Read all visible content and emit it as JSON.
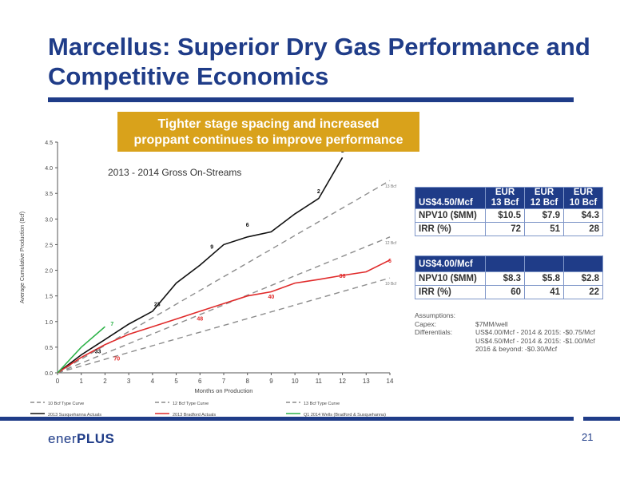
{
  "title": "Marcellus:  Superior Dry Gas Performance and Competitive Economics",
  "callout": {
    "line1": "Tighter stage spacing and increased",
    "line2": "proppant  continues to improve performance"
  },
  "chart_data": {
    "type": "line",
    "title": "2013 - 2014 Gross On-Streams",
    "xlabel": "Months on Production",
    "ylabel": "Average Cumulative Production (Bcf)",
    "xlim": [
      0,
      14
    ],
    "ylim": [
      0,
      4.5
    ],
    "xticks": [
      "0",
      "1",
      "2",
      "3",
      "4",
      "5",
      "6",
      "7",
      "8",
      "9",
      "10",
      "11",
      "12",
      "13",
      "14"
    ],
    "yticks": [
      "0.0",
      "0.5",
      "1.0",
      "1.5",
      "2.0",
      "2.5",
      "3.0",
      "3.5",
      "4.0",
      "4.5"
    ],
    "grid": false,
    "legend_position": "bottom",
    "series": [
      {
        "name": "10 Bcf Type Curve",
        "style": "dashed",
        "color": "#8c8c8c",
        "end_label": "10 Bcf",
        "x": [
          0,
          14
        ],
        "y": [
          0,
          1.85
        ]
      },
      {
        "name": "12 Bcf Type Curve",
        "style": "dashed",
        "color": "#8c8c8c",
        "end_label": "12 Bcf",
        "x": [
          0,
          14
        ],
        "y": [
          0,
          2.65
        ]
      },
      {
        "name": "13 Bcf Type Curve",
        "style": "dashed",
        "color": "#8c8c8c",
        "end_label": "13 Bcf",
        "x": [
          0,
          14
        ],
        "y": [
          0,
          3.75
        ]
      },
      {
        "name": "2013 Susquehanna Actuals",
        "style": "solid",
        "color": "#111111",
        "x": [
          0,
          1,
          2,
          3,
          4,
          5,
          6,
          7,
          8,
          9,
          10,
          11,
          12
        ],
        "y": [
          0,
          0.35,
          0.65,
          0.95,
          1.2,
          1.75,
          2.1,
          2.5,
          2.65,
          2.75,
          3.1,
          3.4,
          4.2
        ]
      },
      {
        "name": "2013 Bradford Actuals",
        "style": "solid",
        "color": "#e02a2a",
        "x": [
          0,
          1,
          2,
          3,
          4,
          5,
          6,
          7,
          8,
          9,
          10,
          11,
          12,
          13,
          14
        ],
        "y": [
          0,
          0.3,
          0.55,
          0.75,
          0.9,
          1.05,
          1.2,
          1.35,
          1.5,
          1.58,
          1.75,
          1.82,
          1.9,
          1.97,
          2.2
        ]
      },
      {
        "name": "Q1 2014 Wells (Bradford & Susquehanna)",
        "style": "solid",
        "color": "#2fb34a",
        "x": [
          0,
          1,
          2
        ],
        "y": [
          0,
          0.5,
          0.9
        ]
      }
    ],
    "annotations": [
      {
        "text": "1",
        "x": 12.0,
        "y": 4.3,
        "color": "#111111"
      },
      {
        "text": "2",
        "x": 11.0,
        "y": 3.5,
        "color": "#111111"
      },
      {
        "text": "6",
        "x": 8.0,
        "y": 2.85,
        "color": "#111111"
      },
      {
        "text": "9",
        "x": 6.5,
        "y": 2.42,
        "color": "#111111"
      },
      {
        "text": "23",
        "x": 4.2,
        "y": 1.3,
        "color": "#111111"
      },
      {
        "text": "33",
        "x": 1.7,
        "y": 0.38,
        "color": "#111111"
      },
      {
        "text": "7",
        "x": 2.3,
        "y": 0.92,
        "color": "#2fb34a"
      },
      {
        "text": "70",
        "x": 2.5,
        "y": 0.24,
        "color": "#e02a2a"
      },
      {
        "text": "48",
        "x": 6.0,
        "y": 1.02,
        "color": "#e02a2a"
      },
      {
        "text": "40",
        "x": 9.0,
        "y": 1.45,
        "color": "#e02a2a"
      },
      {
        "text": "36",
        "x": 12.0,
        "y": 1.85,
        "color": "#e02a2a"
      },
      {
        "text": "6",
        "x": 14.0,
        "y": 2.15,
        "color": "#e02a2a"
      }
    ]
  },
  "table1": {
    "headers": [
      {
        "top": "EUR",
        "bottom": "13 Bcf"
      },
      {
        "top": "EUR",
        "bottom": "12 Bcf"
      },
      {
        "top": "EUR",
        "bottom": "10 Bcf"
      }
    ],
    "price": "US$4.50/Mcf",
    "rows": [
      {
        "label": "NPV10 ($MM)",
        "values": [
          "$10.5",
          "$7.9",
          "$4.3"
        ]
      },
      {
        "label": "IRR (%)",
        "values": [
          "72",
          "51",
          "28"
        ]
      }
    ]
  },
  "table2": {
    "price": "US$4.00/Mcf",
    "rows": [
      {
        "label": "NPV10 ($MM)",
        "values": [
          "$8.3",
          "$5.8",
          "$2.8"
        ]
      },
      {
        "label": "IRR (%)",
        "values": [
          "60",
          "41",
          "22"
        ]
      }
    ]
  },
  "assumptions": {
    "heading": "Assumptions:",
    "capex_label": "Capex:",
    "capex_value": "$7MM/well",
    "diff_label": "Differentials:",
    "diff_line1": "US$4.00/Mcf - 2014 & 2015:  -$0.75/Mcf",
    "diff_line2": "US$4.50/Mcf - 2014 & 2015:  -$1.00/Mcf",
    "diff_line3": "2016 & beyond: -$0.30/Mcf"
  },
  "logo": {
    "part1": "ener",
    "part2": "PLUS"
  },
  "page_number": "21",
  "colors": {
    "brand_blue": "#1f3c88",
    "callout_gold": "#d9a21b"
  }
}
